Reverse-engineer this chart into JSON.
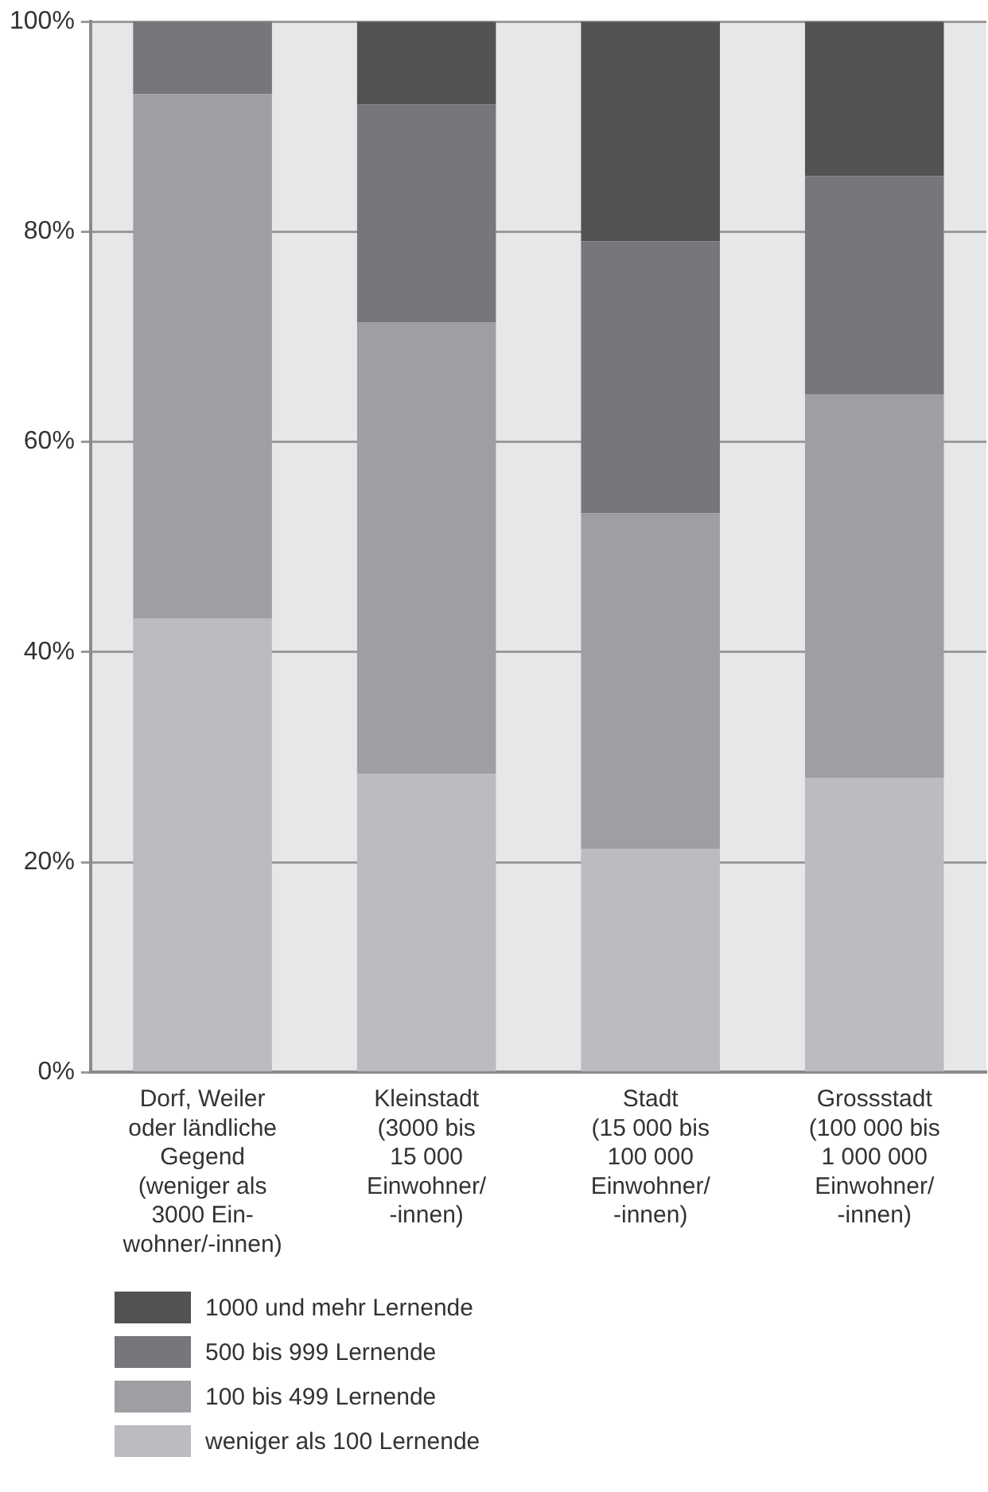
{
  "chart_data": {
    "type": "bar",
    "stacked": true,
    "categories": [
      "Dorf, Weiler\noder ländliche\nGegend\n(weniger als\n3000 Ein-\nwohner/-innen)",
      "Kleinstadt\n(3000 bis\n15 000\nEinwohner/\n-innen)",
      "Stadt\n(15 000 bis\n100 000\nEinwohner/\n-innen)",
      "Grossstadt\n(100 000 bis\n1 000 000\nEinwohner/\n-innen)"
    ],
    "series": [
      {
        "name": "weniger als 100 Lernende",
        "color": "#bbbcc0",
        "values": [
          43.2,
          28.4,
          21.3,
          28.0
        ]
      },
      {
        "name": "100 bis 499 Lernende",
        "color": "#9e9fa3",
        "values": [
          49.9,
          43.0,
          31.9,
          36.5
        ]
      },
      {
        "name": "500 bis 999 Lernende",
        "color": "#76777b",
        "values": [
          6.9,
          20.7,
          25.9,
          20.8
        ]
      },
      {
        "name": "1000 und mehr Lernende",
        "color": "#525254",
        "values": [
          0,
          7.9,
          20.9,
          14.7
        ]
      }
    ],
    "ylim": [
      0,
      100
    ],
    "yticks": [
      {
        "value": 0,
        "label": "0%"
      },
      {
        "value": 20,
        "label": "20%"
      },
      {
        "value": 40,
        "label": "40%"
      },
      {
        "value": 60,
        "label": "60%"
      },
      {
        "value": 80,
        "label": "80%"
      },
      {
        "value": 100,
        "label": "100%"
      }
    ],
    "grid": "y",
    "legend": "bottom left"
  }
}
